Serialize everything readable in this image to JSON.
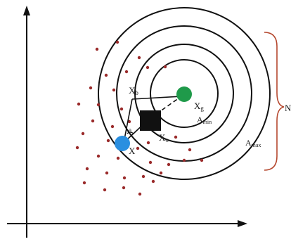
{
  "labels": {
    "xb": "X",
    "xb_sub": "b",
    "xg": "X",
    "xg_sub": "g",
    "xo": "X",
    "xo_sub": "o",
    "x": "X",
    "theta": "θ",
    "amin": "A",
    "amin_sub": "min",
    "amax": "A",
    "amax_sub": "max",
    "n": "N"
  },
  "colors": {
    "ink": "#111111",
    "dot": "#9a2a2a",
    "goal": "#1f9a4a",
    "agent": "#2a8fe0",
    "obstacle": "#111111",
    "brace": "#b5482f"
  },
  "icons": {
    "goal": "green-circle",
    "agent": "blue-circle",
    "obstacle": "black-square"
  }
}
